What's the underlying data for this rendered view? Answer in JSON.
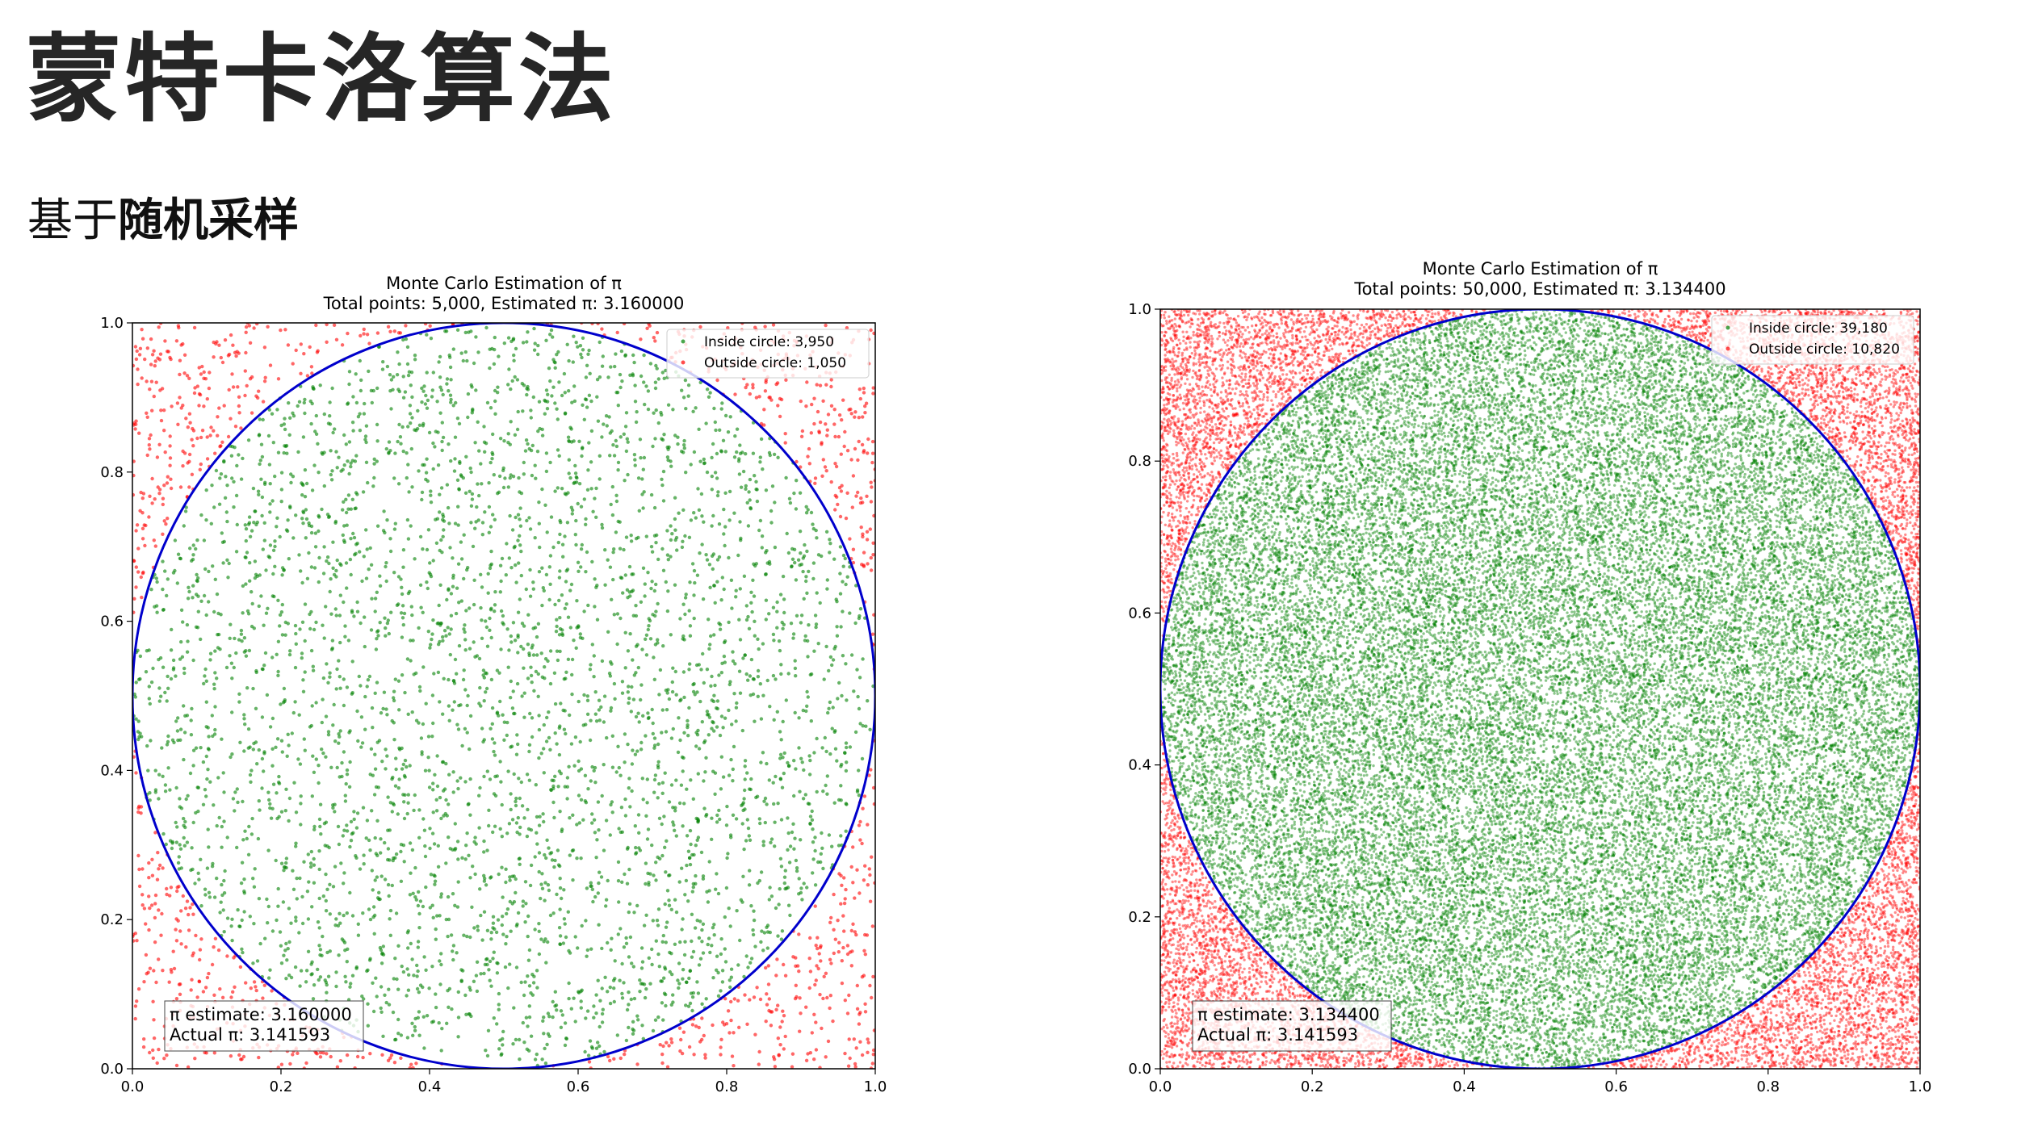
{
  "slide": {
    "title": "蒙特卡洛算法",
    "subtitle_prefix": "基于",
    "subtitle_emphasis": "随机采样"
  },
  "colors": {
    "inside": "#008000",
    "outside": "#ff0000",
    "circle": "#0000cc"
  },
  "chart_data": [
    {
      "type": "scatter",
      "title": "Monte Carlo Estimation of π",
      "subtitle": "Total points: 5,000, Estimated π: 3.160000",
      "xlim": [
        0.0,
        1.0
      ],
      "ylim": [
        0.0,
        1.0
      ],
      "xticks": [
        "0.0",
        "0.2",
        "0.4",
        "0.6",
        "0.8",
        "1.0"
      ],
      "yticks": [
        "0.0",
        "0.2",
        "0.4",
        "0.6",
        "0.8",
        "1.0"
      ],
      "circle": {
        "center": [
          0.5,
          0.5
        ],
        "radius": 0.5
      },
      "total_points": 5000,
      "series": [
        {
          "name": "Inside circle: 3,950",
          "count": 3950,
          "color": "#008000"
        },
        {
          "name": "Outside circle: 1,050",
          "count": 1050,
          "color": "#ff0000"
        }
      ],
      "legend_position": "top-right",
      "annotation": [
        "π estimate: 3.160000",
        "Actual π: 3.141593"
      ],
      "annotation_position": "bottom-left",
      "grid": false
    },
    {
      "type": "scatter",
      "title": "Monte Carlo Estimation of π",
      "subtitle": "Total points: 50,000, Estimated π: 3.134400",
      "xlim": [
        0.0,
        1.0
      ],
      "ylim": [
        0.0,
        1.0
      ],
      "xticks": [
        "0.0",
        "0.2",
        "0.4",
        "0.6",
        "0.8",
        "1.0"
      ],
      "yticks": [
        "0.0",
        "0.2",
        "0.4",
        "0.6",
        "0.8",
        "1.0"
      ],
      "circle": {
        "center": [
          0.5,
          0.5
        ],
        "radius": 0.5
      },
      "total_points": 50000,
      "series": [
        {
          "name": "Inside circle: 39,180",
          "count": 39180,
          "color": "#008000"
        },
        {
          "name": "Outside circle: 10,820",
          "count": 10820,
          "color": "#ff0000"
        }
      ],
      "legend_position": "top-right",
      "annotation": [
        "π estimate: 3.134400",
        "Actual π: 3.141593"
      ],
      "annotation_position": "bottom-left",
      "grid": false
    }
  ]
}
